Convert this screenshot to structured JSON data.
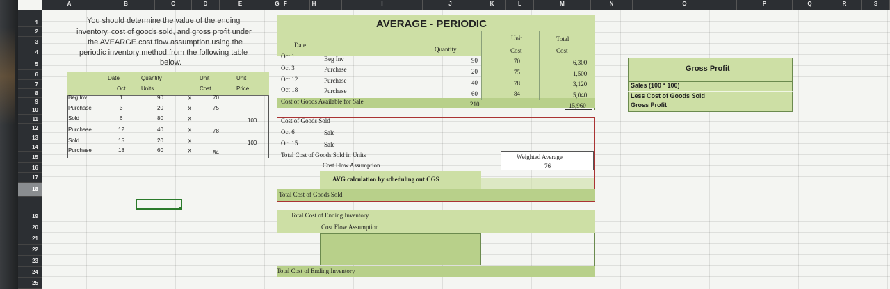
{
  "columns": [
    "A",
    "B",
    "C",
    "D",
    "E",
    "F",
    "G",
    "H",
    "I",
    "J",
    "K",
    "L",
    "M",
    "N",
    "O",
    "P",
    "Q",
    "R",
    "S"
  ],
  "rows": [
    "1",
    "2",
    "3",
    "4",
    "5",
    "6",
    "7",
    "8",
    "9",
    "10",
    "11",
    "12",
    "13",
    "14",
    "15",
    "16",
    "17",
    "18",
    "19",
    "20",
    "21",
    "22",
    "23",
    "24",
    "25"
  ],
  "selected_row": "18",
  "instructions": {
    "line1": "You should determine the value of the ending",
    "line2": "inventory, cost of goods sold, and gross profit under",
    "line3": "the AVEARGE cost flow assumption using the",
    "line4": "periodic inventory method from the following table",
    "line5": "below."
  },
  "left_table": {
    "headers": {
      "date": "Date",
      "oct": "Oct",
      "quantity": "Quantity",
      "units": "Units",
      "unit1": "Unit",
      "cost": "Cost",
      "unit2": "Unit",
      "price": "Price"
    },
    "rows": [
      {
        "label": "Beg Inv",
        "day": "1",
        "qty": "90",
        "x": "X",
        "cost": "70",
        "price": ""
      },
      {
        "label": "Purchase",
        "day": "3",
        "qty": "20",
        "x": "X",
        "cost": "75",
        "price": ""
      },
      {
        "label": "Sold",
        "day": "6",
        "qty": "80",
        "x": "X",
        "cost": "",
        "price": "100"
      },
      {
        "label": "Purchase",
        "day": "12",
        "qty": "40",
        "x": "X",
        "cost": "78",
        "price": ""
      },
      {
        "label": "Sold",
        "day": "15",
        "qty": "20",
        "x": "X",
        "cost": "",
        "price": "100"
      },
      {
        "label": "Purchase",
        "day": "18",
        "qty": "60",
        "x": "X",
        "cost": "84",
        "price": ""
      }
    ]
  },
  "avg": {
    "title": "AVERAGE - PERIODIC",
    "headers": {
      "date": "Date",
      "quantity": "Quantity",
      "unit": "Unit",
      "unit_cost": "Cost",
      "total": "Total",
      "total_cost": "Cost"
    },
    "rows": [
      {
        "date": "Oct 1",
        "desc": "Beg Inv",
        "qty": "90",
        "unit": "70",
        "total": "6,300"
      },
      {
        "date": "Oct 3",
        "desc": "Purchase",
        "qty": "20",
        "unit": "75",
        "total": "1,500"
      },
      {
        "date": "Oct 12",
        "desc": "Purchase",
        "qty": "40",
        "unit": "78",
        "total": "3,120"
      },
      {
        "date": "Oct 18",
        "desc": "Purchase",
        "qty": "60",
        "unit": "84",
        "total": "5,040"
      }
    ],
    "available": {
      "label": "Cost of Goods Available for Sale",
      "qty": "210",
      "total": "15,960"
    }
  },
  "cgs": {
    "title": "Cost of Goods Sold",
    "sales": [
      {
        "date": "Oct 6",
        "desc": "Sale"
      },
      {
        "date": "Oct 15",
        "desc": "Sale"
      }
    ],
    "total_units_label": "Total Cost of Goods Sold in Units",
    "flow_label": "Cost Flow Assumption",
    "weighted_avg_label": "Weighted Average",
    "weighted_avg_value": "76",
    "avg_calc_label": "AVG calculation by scheduling out CGS",
    "total_label": "Total Cost of Goods Sold"
  },
  "ending": {
    "title": "Total Cost of Ending Inventory",
    "flow_label": "Cost Flow Assumption",
    "total_label": "Total Cost of Ending Inventory"
  },
  "gross_profit": {
    "title": "Gross Profit",
    "sales": "Sales (100 * 100)",
    "less_cgs": "Less Cost of Goods Sold",
    "gross": "Gross Profit"
  }
}
